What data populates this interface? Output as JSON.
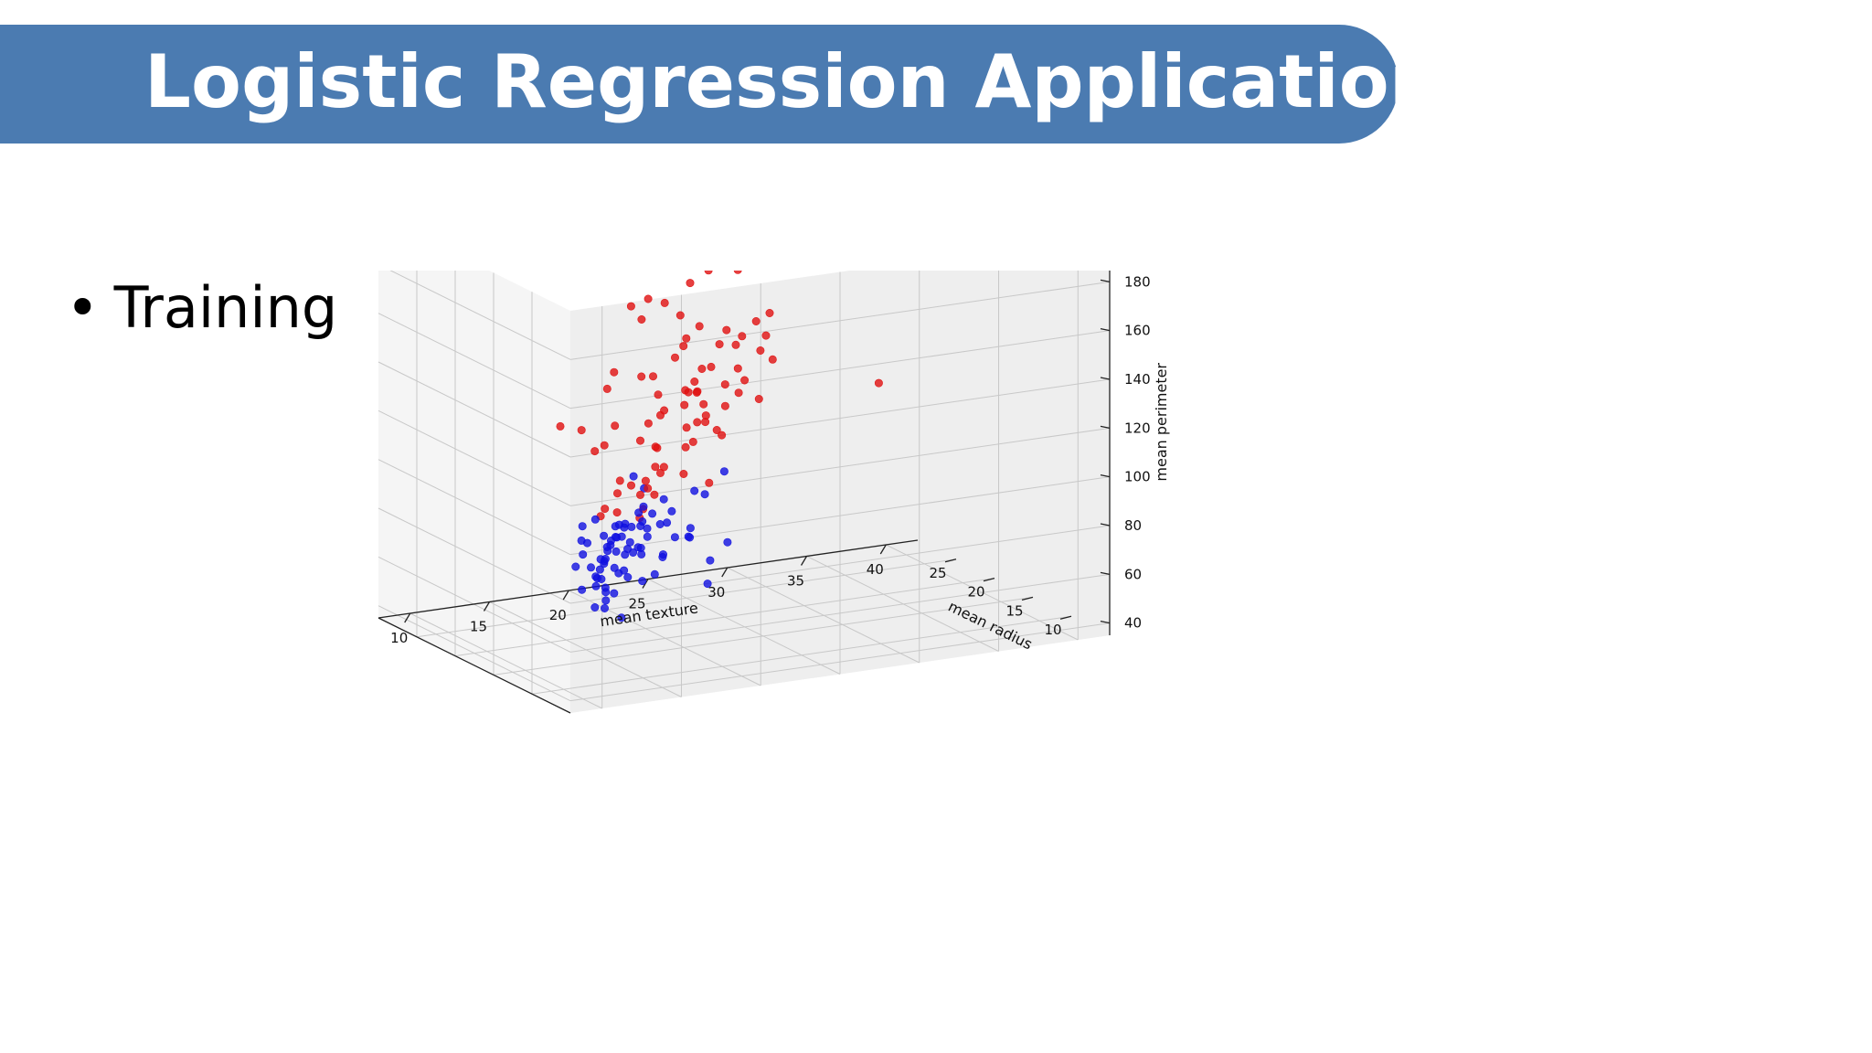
{
  "slide": {
    "title": "Logistic Regression Application",
    "bullet": "Training U"
  },
  "colors": {
    "banner": "#4b7bb1",
    "class_red": "#e01010",
    "class_blue": "#1010e0"
  },
  "chart_data": {
    "type": "scatter",
    "projection": "3d",
    "title": "",
    "xlabel": "mean radius",
    "ylabel": "mean texture",
    "zlabel": "mean perimeter",
    "xlim": [
      5,
      30
    ],
    "ylim": [
      8,
      42
    ],
    "zlim": [
      35,
      200
    ],
    "xticks": [
      10,
      15,
      20,
      25
    ],
    "yticks": [
      10,
      15,
      20,
      25,
      30,
      35,
      40
    ],
    "zticks": [
      40,
      60,
      80,
      100,
      120,
      140,
      160,
      180
    ],
    "grid": true,
    "legend": "none",
    "series": [
      {
        "color": "#e01010",
        "points": [
          [
            26.5,
            19.8,
            185
          ],
          [
            21.1,
            24.5,
            176
          ],
          [
            25.3,
            25.2,
            185
          ],
          [
            24.0,
            22.1,
            162
          ],
          [
            22.5,
            20.3,
            163
          ],
          [
            23.0,
            21.2,
            156
          ],
          [
            27.0,
            26.2,
            160
          ],
          [
            24.3,
            27.9,
            168
          ],
          [
            22.7,
            23.5,
            156
          ],
          [
            23.7,
            23.0,
            160
          ],
          [
            21.3,
            23.2,
            149
          ],
          [
            23.3,
            26.7,
            146
          ],
          [
            23.6,
            26.4,
            140
          ],
          [
            26.0,
            30.5,
            136
          ],
          [
            27.7,
            30.7,
            139
          ],
          [
            21.0,
            18.5,
            140
          ],
          [
            18.5,
            13.9,
            126
          ],
          [
            26.4,
            37.8,
            109
          ],
          [
            21.5,
            21.2,
            135
          ],
          [
            22.3,
            23.5,
            144
          ],
          [
            18.8,
            17.0,
            138
          ],
          [
            17.6,
            14.8,
            125
          ],
          [
            19.3,
            19.4,
            140
          ],
          [
            20.7,
            22.2,
            143
          ],
          [
            20.2,
            22.8,
            129
          ],
          [
            19.6,
            20.6,
            131
          ],
          [
            22.2,
            25.2,
            134
          ],
          [
            19.3,
            20.6,
            123
          ],
          [
            18.2,
            18.8,
            116
          ],
          [
            20.3,
            23.4,
            116
          ],
          [
            21.6,
            26.6,
            133
          ],
          [
            22.5,
            26.9,
            141
          ],
          [
            21.1,
            24.3,
            114
          ],
          [
            22.6,
            28.5,
            137
          ],
          [
            17.3,
            16.1,
            118
          ],
          [
            16.9,
            15.3,
            117
          ],
          [
            18.7,
            20.1,
            111
          ],
          [
            19.0,
            19.7,
            121
          ],
          [
            21.1,
            23.8,
            127
          ],
          [
            18.0,
            17.1,
            124
          ],
          [
            20.2,
            22.6,
            130
          ],
          [
            19.0,
            22.1,
            117
          ],
          [
            19.7,
            22.3,
            125
          ],
          [
            23.9,
            29.9,
            130
          ],
          [
            20.4,
            24.0,
            118
          ],
          [
            18.5,
            19.9,
            112
          ],
          [
            17.9,
            19.6,
            105
          ],
          [
            17.3,
            18.7,
            101
          ],
          [
            16.3,
            17.3,
            102
          ],
          [
            18.5,
            21.8,
            110
          ],
          [
            15.6,
            16.1,
            101
          ],
          [
            16.1,
            16.5,
            105
          ],
          [
            20.4,
            25.0,
            109
          ],
          [
            23.2,
            28.7,
            116
          ],
          [
            21.1,
            26.4,
            124
          ],
          [
            16.2,
            18.3,
            100
          ],
          [
            17.1,
            21.0,
            102
          ],
          [
            15.8,
            15.4,
            95
          ],
          [
            19.6,
            24.3,
            113
          ],
          [
            20.3,
            23.8,
            123
          ],
          [
            18.2,
            20.3,
            127
          ],
          [
            14.9,
            14.7,
            94
          ],
          [
            16.6,
            18.2,
            91
          ],
          [
            19.2,
            22.7,
            135
          ],
          [
            17.6,
            20.0,
            105
          ],
          [
            21.2,
            25.6,
            128
          ],
          [
            22.9,
            24.8,
            150
          ],
          [
            16.9,
            21.5,
            115
          ],
          [
            17.5,
            22.8,
            96
          ],
          [
            14.2,
            15.4,
            96
          ],
          [
            15.1,
            17.3,
            100
          ],
          [
            18.9,
            22.7,
            131
          ],
          [
            20.1,
            23.6,
            138
          ],
          [
            22.1,
            27.1,
            145
          ],
          [
            15.4,
            17.4,
            90
          ],
          [
            17.2,
            19.2,
            95
          ],
          [
            16.0,
            19.0,
            106
          ],
          [
            19.5,
            26.0,
            132
          ],
          [
            18.3,
            24.2,
            125
          ],
          [
            24.5,
            30.0,
            148
          ]
        ]
      },
      {
        "color": "#1010e0",
        "points": [
          [
            11.0,
            11.6,
            93
          ],
          [
            10.6,
            11.5,
            88
          ],
          [
            11.9,
            12.1,
            97
          ],
          [
            12.9,
            13.4,
            97
          ],
          [
            13.4,
            14.9,
            92
          ],
          [
            10.3,
            10.9,
            84
          ],
          [
            13.1,
            15.0,
            93
          ],
          [
            12.6,
            14.6,
            89
          ],
          [
            14.2,
            15.3,
            86
          ],
          [
            12.6,
            13.8,
            79
          ],
          [
            13.6,
            14.3,
            78
          ],
          [
            14.5,
            16.9,
            94
          ],
          [
            15.1,
            17.5,
            95
          ],
          [
            14.6,
            16.1,
            90
          ],
          [
            13.2,
            14.5,
            85
          ],
          [
            11.8,
            13.4,
            92
          ],
          [
            12.4,
            13.9,
            86
          ],
          [
            11.2,
            12.3,
            81
          ],
          [
            12.5,
            13.5,
            77
          ],
          [
            13.9,
            15.7,
            90
          ],
          [
            15.2,
            16.7,
            81
          ],
          [
            12.2,
            13.1,
            71
          ],
          [
            9.9,
            11.1,
            75
          ],
          [
            15.0,
            18.5,
            87
          ],
          [
            16.6,
            17.6,
            105
          ],
          [
            17.3,
            18.6,
            98
          ],
          [
            15.7,
            17.6,
            86
          ],
          [
            17.0,
            19.7,
            93
          ],
          [
            12.3,
            12.6,
            89
          ],
          [
            13.6,
            15.4,
            87
          ],
          [
            11.6,
            13.1,
            83
          ],
          [
            11.2,
            12.6,
            77
          ],
          [
            14.8,
            16.6,
            88
          ],
          [
            13.8,
            15.7,
            79
          ],
          [
            12.9,
            14.6,
            76
          ],
          [
            13.7,
            15.1,
            81
          ],
          [
            14.9,
            16.4,
            79
          ],
          [
            10.8,
            12.5,
            77
          ],
          [
            12.0,
            13.6,
            82
          ],
          [
            11.5,
            13.1,
            75
          ],
          [
            13.1,
            15.3,
            74
          ],
          [
            14.2,
            16.9,
            80
          ],
          [
            11.6,
            13.4,
            71
          ],
          [
            12.6,
            15.3,
            72
          ],
          [
            15.4,
            18.2,
            91
          ],
          [
            16.6,
            19.7,
            84
          ],
          [
            12.1,
            14.0,
            89
          ],
          [
            11.1,
            13.3,
            87
          ],
          [
            14.0,
            17.2,
            88
          ],
          [
            14.8,
            17.6,
            83
          ],
          [
            13.6,
            16.7,
            92
          ],
          [
            10.5,
            12.9,
            68
          ],
          [
            11.9,
            13.5,
            62
          ],
          [
            16.8,
            20.1,
            88
          ],
          [
            15.4,
            17.3,
            78
          ],
          [
            9.5,
            13.4,
            62
          ],
          [
            13.2,
            14.2,
            66
          ],
          [
            10.9,
            12.4,
            65
          ],
          [
            11.7,
            14.0,
            68
          ],
          [
            13.4,
            16.6,
            68
          ],
          [
            12.9,
            16.3,
            80
          ],
          [
            14.2,
            18.3,
            76
          ],
          [
            15.8,
            20.8,
            82
          ],
          [
            18.8,
            22.5,
            91
          ],
          [
            20.9,
            25.4,
            93
          ],
          [
            19.3,
            23.4,
            88
          ],
          [
            17.1,
            21.3,
            76
          ],
          [
            17.8,
            24.1,
            70
          ],
          [
            14.4,
            21.2,
            61
          ],
          [
            15.1,
            21.7,
            69
          ],
          [
            12.2,
            17.3,
            79
          ],
          [
            13.9,
            18.9,
            83
          ],
          [
            10.7,
            13.8,
            78
          ],
          [
            12.4,
            16.9,
            72
          ],
          [
            15.9,
            20.8,
            78
          ],
          [
            11.5,
            15.1,
            84
          ]
        ]
      }
    ]
  }
}
